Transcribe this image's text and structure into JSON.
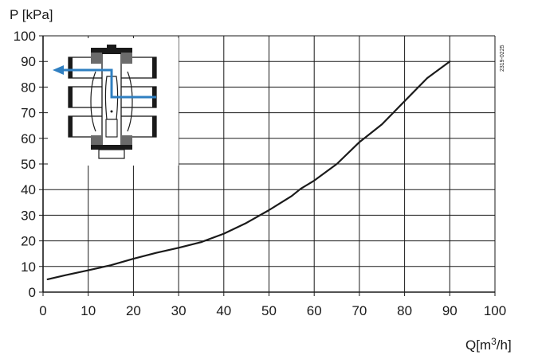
{
  "chart_data": {
    "type": "line",
    "ylabel": "P [kPa]",
    "xlabel": "Q[m³/h]",
    "xlabel_parts": {
      "base": "Q[m",
      "sup": "3",
      "tail": "/h]"
    },
    "reference_code": "2319-0225",
    "xlim": [
      0,
      100
    ],
    "ylim": [
      0,
      100
    ],
    "x_ticks": [
      0,
      10,
      20,
      30,
      40,
      50,
      60,
      70,
      80,
      90,
      100
    ],
    "y_ticks": [
      0,
      10,
      20,
      30,
      40,
      50,
      60,
      70,
      80,
      90,
      100
    ],
    "grid": true,
    "series": [
      {
        "x": [
          1,
          5,
          10,
          15,
          20,
          25,
          30,
          35,
          40,
          45,
          50,
          55,
          57,
          60,
          65,
          70,
          75,
          80,
          85,
          90
        ],
        "y": [
          5,
          6.6,
          8.5,
          10.5,
          13,
          15.3,
          17.3,
          19.5,
          22.8,
          27,
          32,
          37.5,
          40.3,
          43.5,
          50,
          58.5,
          65.5,
          74.5,
          83.5,
          90
        ],
        "color": "#1a1a1a"
      }
    ],
    "inset": {
      "description_icon": "valve-cross-section-icon",
      "flow_arrow_color": "#2f7fc1"
    }
  }
}
